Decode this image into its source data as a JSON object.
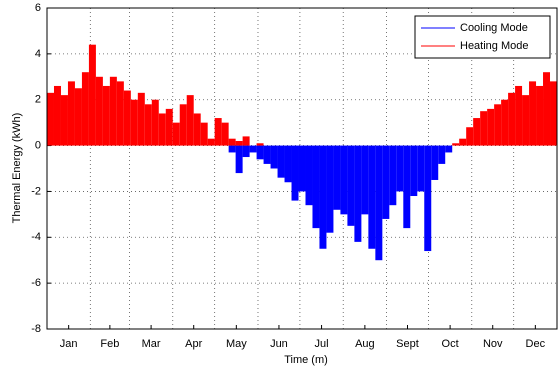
{
  "chart_data": {
    "type": "bar",
    "xlabel": "Time (m)",
    "ylabel": "Thermal Energy (kWh)",
    "x": [
      0,
      5,
      10,
      15,
      20,
      25,
      30,
      35,
      40,
      45,
      50,
      55,
      60,
      65,
      70,
      75,
      80,
      85,
      90,
      95,
      100,
      105,
      110,
      115,
      120,
      125,
      130,
      135,
      140,
      145,
      150,
      155,
      160,
      165,
      170,
      175,
      180,
      185,
      190,
      195,
      200,
      205,
      210,
      215,
      220,
      225,
      230,
      235,
      240,
      245,
      250,
      255,
      260,
      265,
      270,
      275,
      280,
      285,
      290,
      295,
      300,
      305,
      310,
      315,
      320,
      325,
      330,
      335,
      340,
      345,
      350,
      355,
      360
    ],
    "series": [
      {
        "name": "Cooling Mode",
        "color": "#0000ff",
        "values": [
          0,
          0,
          0,
          0,
          0,
          0,
          0,
          0,
          0,
          0,
          0,
          0,
          0,
          0,
          0,
          0,
          0,
          0,
          0,
          0,
          0,
          0,
          0,
          0,
          0,
          0,
          -0.3,
          -1.2,
          -0.5,
          -0.3,
          -0.6,
          -0.8,
          -1.0,
          -1.4,
          -1.6,
          -2.4,
          -2.0,
          -2.6,
          -3.6,
          -4.5,
          -3.8,
          -2.8,
          -3.0,
          -3.5,
          -4.2,
          -3.0,
          -4.5,
          -5.0,
          -3.2,
          -2.6,
          -2.0,
          -3.6,
          -2.2,
          -2.0,
          -4.6,
          -1.5,
          -0.8,
          -0.3,
          0,
          0,
          0,
          0,
          0,
          0,
          0,
          0,
          0,
          0,
          0,
          0,
          0,
          0,
          0
        ]
      },
      {
        "name": "Heating Mode",
        "color": "#ff0000",
        "values": [
          2.3,
          2.6,
          2.2,
          2.8,
          2.5,
          3.2,
          4.4,
          3.0,
          2.6,
          3.0,
          2.8,
          2.4,
          2.0,
          2.3,
          1.8,
          2.0,
          1.4,
          1.6,
          1.0,
          1.8,
          2.2,
          1.4,
          1.0,
          0.3,
          1.2,
          1.0,
          0.3,
          0.2,
          0.4,
          0,
          0.1,
          0,
          0,
          0,
          0,
          0,
          0,
          0,
          0,
          0,
          0,
          0,
          0,
          0,
          0,
          0,
          0,
          0,
          0,
          0,
          0,
          0,
          0,
          0,
          0,
          0,
          0,
          0,
          0.1,
          0.3,
          0.8,
          1.2,
          1.5,
          1.6,
          1.8,
          2.0,
          2.3,
          2.6,
          2.2,
          2.8,
          2.6,
          3.2,
          2.8
        ]
      }
    ],
    "xlim": [
      0,
      365
    ],
    "xticks": [
      {
        "value": 15.5,
        "label": "Jan"
      },
      {
        "value": 45,
        "label": "Feb"
      },
      {
        "value": 74.5,
        "label": "Mar"
      },
      {
        "value": 105,
        "label": "Apr"
      },
      {
        "value": 135.5,
        "label": "May"
      },
      {
        "value": 166,
        "label": "Jun"
      },
      {
        "value": 196.5,
        "label": "Jul"
      },
      {
        "value": 227.5,
        "label": "Aug"
      },
      {
        "value": 258,
        "label": "Sept"
      },
      {
        "value": 288.5,
        "label": "Oct"
      },
      {
        "value": 319,
        "label": "Nov"
      },
      {
        "value": 349.5,
        "label": "Dec"
      }
    ],
    "xgrid": [
      31,
      59,
      90,
      120,
      151,
      181,
      212,
      243,
      273,
      304,
      334
    ],
    "ylim": [
      -8,
      6
    ],
    "yticks": [
      6,
      4,
      2,
      0,
      -2,
      -4,
      -6,
      -8
    ],
    "grid": true,
    "legend": "upper right"
  }
}
